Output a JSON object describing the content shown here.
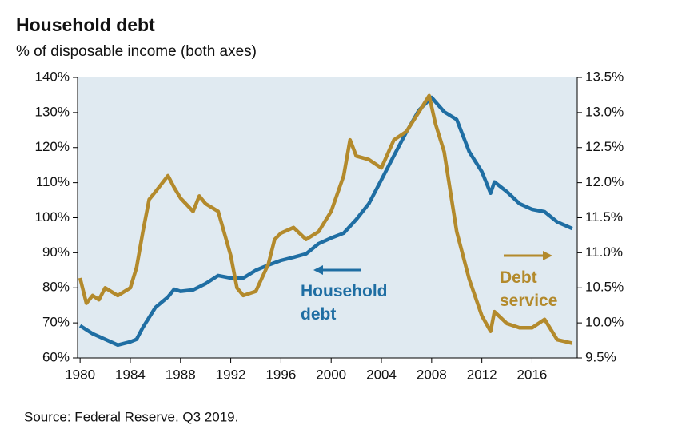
{
  "chart_data": {
    "type": "line",
    "title": "Household debt",
    "subtitle": "% of disposable income (both axes)",
    "source": "Source: Federal Reserve. Q3 2019.",
    "xlim": [
      1979.8,
      2019.6
    ],
    "xticks": [
      1980,
      1984,
      1988,
      1992,
      1996,
      2000,
      2004,
      2008,
      2012,
      2016
    ],
    "ylim": [
      60,
      140
    ],
    "yticks": [
      {
        "value": 60,
        "label": "60%"
      },
      {
        "value": 70,
        "label": "70%"
      },
      {
        "value": 80,
        "label": "80%"
      },
      {
        "value": 90,
        "label": "90%"
      },
      {
        "value": 100,
        "label": "100%"
      },
      {
        "value": 110,
        "label": "110%"
      },
      {
        "value": 120,
        "label": "120%"
      },
      {
        "value": 130,
        "label": "130%"
      },
      {
        "value": 140,
        "label": "140%"
      }
    ],
    "y2lim": [
      9.5,
      13.5
    ],
    "y2ticks": [
      {
        "value": 9.5,
        "label": "9.5%"
      },
      {
        "value": 10,
        "label": "10.0%"
      },
      {
        "value": 10.5,
        "label": "10.5%"
      },
      {
        "value": 11,
        "label": "11.0%"
      },
      {
        "value": 11.5,
        "label": "11.5%"
      },
      {
        "value": 12,
        "label": "12.0%"
      },
      {
        "value": 12.5,
        "label": "12.5%"
      },
      {
        "value": 13,
        "label": "13.0%"
      },
      {
        "value": 13.5,
        "label": "13.5%"
      }
    ],
    "series": [
      {
        "name": "Household debt",
        "color": "#1f6ea3",
        "axis": "y",
        "x": [
          1980,
          1981,
          1982,
          1983,
          1984,
          1984.5,
          1985,
          1986,
          1987,
          1987.5,
          1988,
          1989,
          1990,
          1991,
          1992,
          1993,
          1994,
          1995,
          1996,
          1997,
          1998,
          1999,
          2000,
          2001,
          2002,
          2003,
          2004,
          2005,
          2006,
          2007,
          2008,
          2009,
          2010,
          2011,
          2012,
          2012.7,
          2013,
          2014,
          2015,
          2016,
          2017,
          2018,
          2019.2
        ],
        "values": [
          69.2,
          66.9,
          65.3,
          63.7,
          64.6,
          65.3,
          68.7,
          74.4,
          77.4,
          79.6,
          79,
          79.4,
          81.2,
          83.5,
          82.8,
          82.8,
          85,
          86.5,
          87.8,
          88.7,
          89.7,
          92.6,
          94.2,
          95.6,
          99.5,
          104,
          110.8,
          117.7,
          124.5,
          130.7,
          134.3,
          130.2,
          128,
          118.8,
          113.1,
          107,
          110.2,
          107.4,
          104,
          102.4,
          101.7,
          98.8,
          96.9
        ]
      },
      {
        "name": "Debt service",
        "color": "#b38a2c",
        "axis": "y2",
        "x": [
          1980,
          1980.5,
          1981,
          1981.5,
          1982,
          1983,
          1984,
          1984.5,
          1985,
          1985.5,
          1986,
          1987,
          1987.5,
          1988,
          1989,
          1989.5,
          1990,
          1991,
          1992,
          1992.5,
          1993,
          1994,
          1995,
          1995.5,
          1996,
          1997,
          1998,
          1999,
          2000,
          2001,
          2001.5,
          2002,
          2003,
          2004,
          2005,
          2006,
          2007,
          2007.8,
          2008.3,
          2009,
          2010,
          2011,
          2012,
          2012.7,
          2013,
          2014,
          2015,
          2016,
          2017,
          2018,
          2019.2
        ],
        "values": [
          10.64,
          10.28,
          10.39,
          10.33,
          10.5,
          10.39,
          10.5,
          10.79,
          11.3,
          11.76,
          11.87,
          12.1,
          11.93,
          11.78,
          11.59,
          11.81,
          11.7,
          11.59,
          10.96,
          10.5,
          10.39,
          10.45,
          10.84,
          11.19,
          11.28,
          11.36,
          11.19,
          11.3,
          11.59,
          12.1,
          12.61,
          12.38,
          12.33,
          12.21,
          12.61,
          12.73,
          13.01,
          13.24,
          12.84,
          12.44,
          11.3,
          10.62,
          10.1,
          9.88,
          10.16,
          9.99,
          9.93,
          9.93,
          10.05,
          9.76,
          9.71
        ]
      }
    ]
  }
}
